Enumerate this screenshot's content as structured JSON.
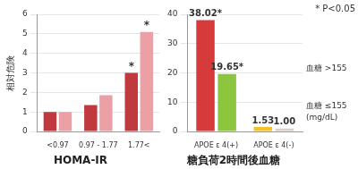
{
  "chart_data": [
    {
      "type": "bar",
      "title": "HOMA-IR",
      "y_label": "相対危険",
      "categories": [
        "<0.97",
        "0.97 - 1.77",
        "1.77<"
      ],
      "series": [
        {
          "color": "#c0393f",
          "values": [
            1.0,
            1.35,
            3.0
          ]
        },
        {
          "color": "#eaa0a4",
          "values": [
            1.0,
            1.85,
            5.1
          ]
        }
      ],
      "ylim": [
        0,
        6
      ],
      "yticks": [
        0,
        1,
        2,
        3,
        4,
        5,
        6
      ],
      "grid": true,
      "annotations": [
        {
          "text": "*",
          "category": "1.77<",
          "series": 0
        },
        {
          "text": "*",
          "category": "1.77<",
          "series": 1
        }
      ]
    },
    {
      "type": "bar",
      "title": "糖負荷2時間後血糖",
      "categories": [
        "APOE ε 4(+)",
        "APOE ε 4(-)"
      ],
      "series": [
        {
          "name": "血糖 >155",
          "colors": [
            "#d63a3a",
            "#f2c12e"
          ],
          "values": [
            38.02,
            1.53
          ],
          "value_labels": [
            "38.02*",
            "1.53"
          ]
        },
        {
          "name": "血糖 ≤155",
          "colors": [
            "#8cc63f",
            "#d8d0c8"
          ],
          "values": [
            19.65,
            1.0
          ],
          "value_labels": [
            "19.65*",
            "1.00"
          ]
        }
      ],
      "ylim": [
        0,
        40
      ],
      "yticks": [
        0,
        10,
        20,
        30,
        40
      ],
      "grid": true,
      "data_labels": true,
      "annotations": [
        {
          "text": "* P<0.05"
        },
        {
          "text": "(mg/dL)"
        }
      ]
    }
  ]
}
